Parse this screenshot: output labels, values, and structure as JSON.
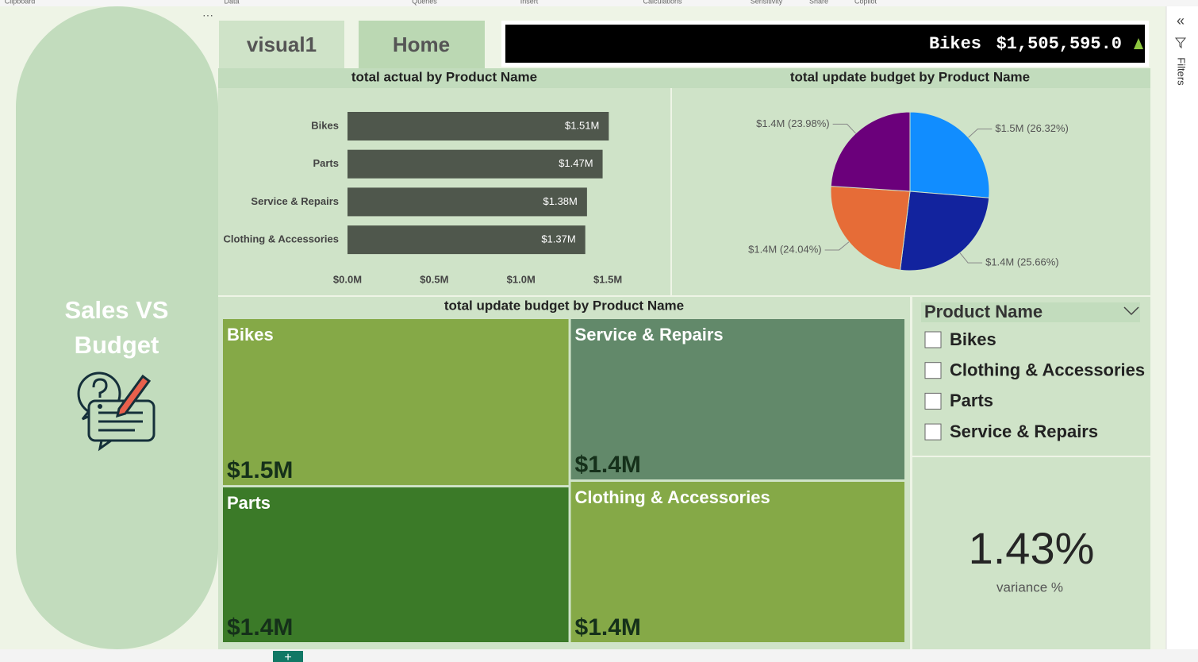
{
  "ribbon": [
    "Clipboard",
    "Data",
    "Queries",
    "Insert",
    "Calculations",
    "Sensitivity",
    "Share",
    "Copilot"
  ],
  "filters_pane": "Filters",
  "side_title": [
    "Sales VS",
    "Budget"
  ],
  "tabs": [
    "visual1",
    "Home"
  ],
  "ticker": {
    "product": "Bikes",
    "value": "$1,505,595.0"
  },
  "chart_data": [
    {
      "type": "bar",
      "title": "total actual by Product Name",
      "categories": [
        "Bikes",
        "Parts",
        "Service & Repairs",
        "Clothing & Accessories"
      ],
      "values": [
        1505595,
        1470000,
        1380000,
        1370000
      ],
      "value_labels": [
        "$1.51M",
        "$1.47M",
        "$1.38M",
        "$1.37M"
      ],
      "color": "#4f574c",
      "xlim": [
        0,
        1600000
      ],
      "xticks": [
        {
          "value": 0,
          "label": "$0.0M"
        },
        {
          "value": 500000,
          "label": "$0.5M"
        },
        {
          "value": 1000000,
          "label": "$1.0M"
        },
        {
          "value": 1500000,
          "label": "$1.5M"
        }
      ]
    },
    {
      "type": "pie",
      "title": "total update budget by Product Name",
      "categories": [
        "Bikes",
        "Parts",
        "Clothing & Accessories",
        "Service & Repairs"
      ],
      "values": [
        26.32,
        25.66,
        24.04,
        23.98
      ],
      "value_labels": [
        "$1.5M (26.32%)",
        "$1.4M (25.66%)",
        "$1.4M (24.04%)",
        "$1.4M (23.98%)"
      ],
      "colors": [
        "#118dff",
        "#12239e",
        "#e66c37",
        "#6b007b"
      ]
    },
    {
      "type": "treemap",
      "title": "total update budget by Product Name",
      "categories": [
        "Bikes",
        "Parts",
        "Service & Repairs",
        "Clothing & Accessories"
      ],
      "values": [
        1500000,
        1400000,
        1400000,
        1400000
      ],
      "value_labels": [
        "$1.5M",
        "$1.4M",
        "$1.4M",
        "$1.4M"
      ],
      "colors": [
        "#85a947",
        "#3b7a28",
        "#62896a",
        "#85a947"
      ]
    }
  ],
  "slicer": {
    "title": "Product Name",
    "items": [
      "Bikes",
      "Clothing & Accessories",
      "Parts",
      "Service & Repairs"
    ]
  },
  "kpi": {
    "value": "1.43%",
    "label": "variance %"
  }
}
